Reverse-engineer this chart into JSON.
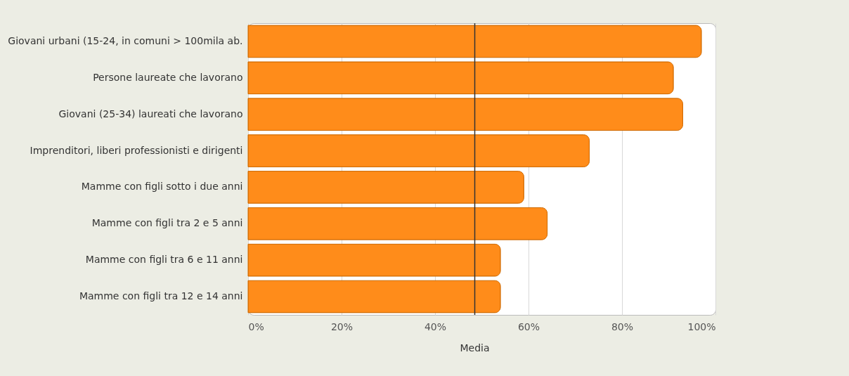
{
  "chart_data": {
    "type": "bar",
    "orientation": "horizontal",
    "categories": [
      "Giovani urbani (15-24, in comuni > 100mila ab.",
      "Persone laureate che lavorano",
      "Giovani (25-34) laureati che lavorano",
      "Imprenditori, liberi professionisti e dirigenti",
      "Mamme con figli sotto i due anni",
      "Mamme con figli tra 2 e 5 anni",
      "Mamme con figli tra 6 e 11 anni",
      "Mamme con figli tra 12 e 14 anni"
    ],
    "values": [
      97,
      91,
      93,
      73,
      59,
      64,
      54,
      54
    ],
    "color": "#ff8c1a",
    "xlim": [
      0,
      100
    ],
    "xticks": [
      {
        "value": 0,
        "label": "0%"
      },
      {
        "value": 20,
        "label": "20%"
      },
      {
        "value": 40,
        "label": "40%"
      },
      {
        "value": 60,
        "label": "60%"
      },
      {
        "value": 80,
        "label": "80%"
      },
      {
        "value": 100,
        "label": "100%"
      }
    ],
    "ref_lines": [
      {
        "axis": "x",
        "value": 48.5,
        "label": "Media",
        "color": "#333333"
      }
    ],
    "grid": "x"
  }
}
